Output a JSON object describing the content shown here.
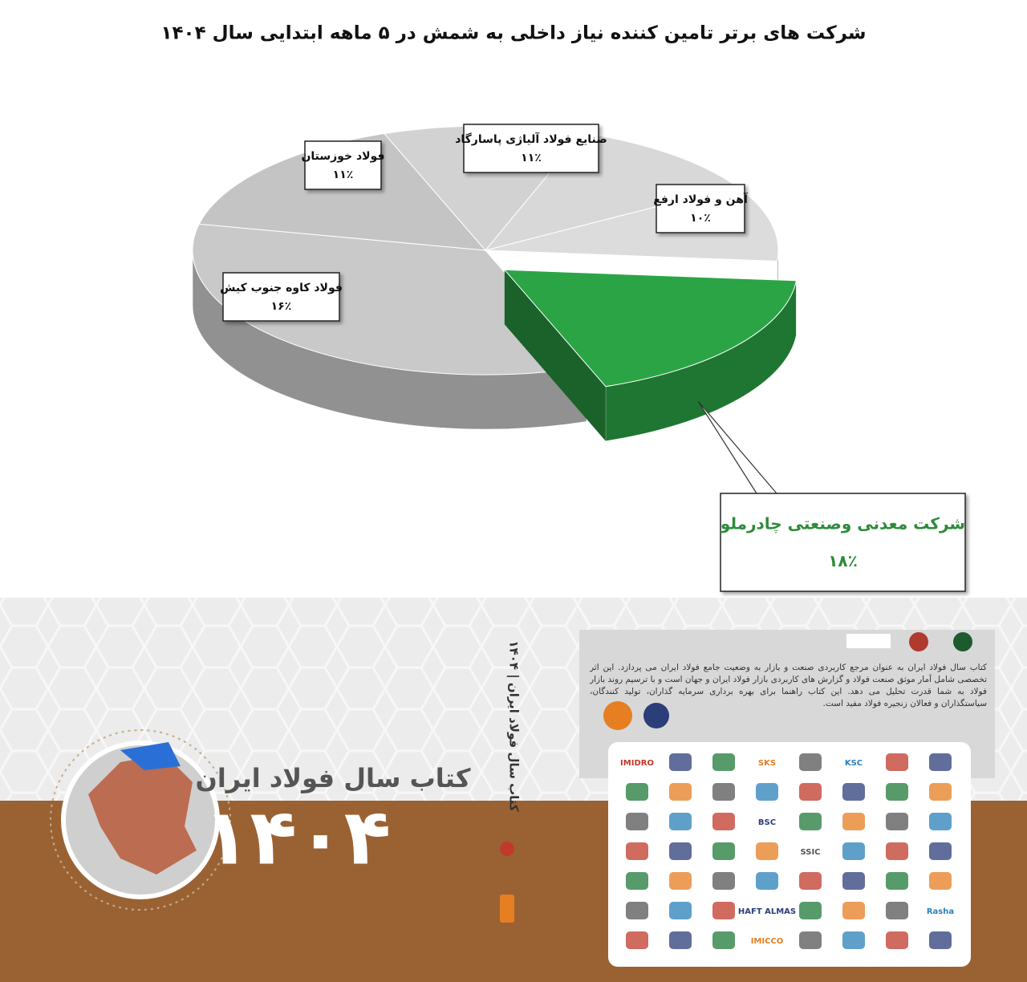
{
  "chart_data": {
    "type": "pie3d",
    "title": "شرکت های برتر تامین کننده نیاز داخلی به شمش در ۵ ماهه ابتدایی سال ۱۴۰۴",
    "categories": [
      "شرکت معدنی وصنعتی چادرملو",
      null,
      "فولاد کاوه جنوب کیش",
      "فولاد خوزستان",
      "صنایع فولاد آلیاژی پاسارگاد",
      "آهن و فولاد ارفع"
    ],
    "values": [
      18,
      34,
      16,
      11,
      11,
      10
    ],
    "value_labels": [
      "۱۸٪",
      null,
      "۱۶٪",
      "۱۱٪",
      "۱۱٪",
      "۱۰٪"
    ],
    "colors": [
      "#2ba446",
      "#c9c9c9",
      "#c4c4c4",
      "#d2d2d2",
      "#d8d8d8",
      "#dcdcdc"
    ],
    "exploded": [
      true,
      false,
      false,
      false,
      false,
      false
    ]
  },
  "banner": {
    "title": "کتاب سال فولاد ایران",
    "year": "۱۴۰۴",
    "spine": "کتاب سال فولاد ایران | ۱۴۰۴",
    "back_text": "کتاب سال فولاد ایران به عنوان مرجع کاربردی صنعت و بازار به وضعیت جامع فولاد ایران می پردازد. این اثر تخصصی شامل آمار موثق صنعت فولاد و گزارش های کاربردی بازار فولاد ایران و جهان است و با ترسیم روند بازار فولاد به شما قدرت تحلیل می دهد. این کتاب راهنما برای بهره برداری سرمایه گذاران، تولید کنندگان، سیاستگذاران و فعالان زنجیره فولاد مفید است.",
    "logos": [
      "IMIDRO",
      "SKS",
      "KSC",
      "BSC",
      "SSIC",
      "Rasha",
      "HAFT ALMAS",
      "IMICCO"
    ]
  }
}
